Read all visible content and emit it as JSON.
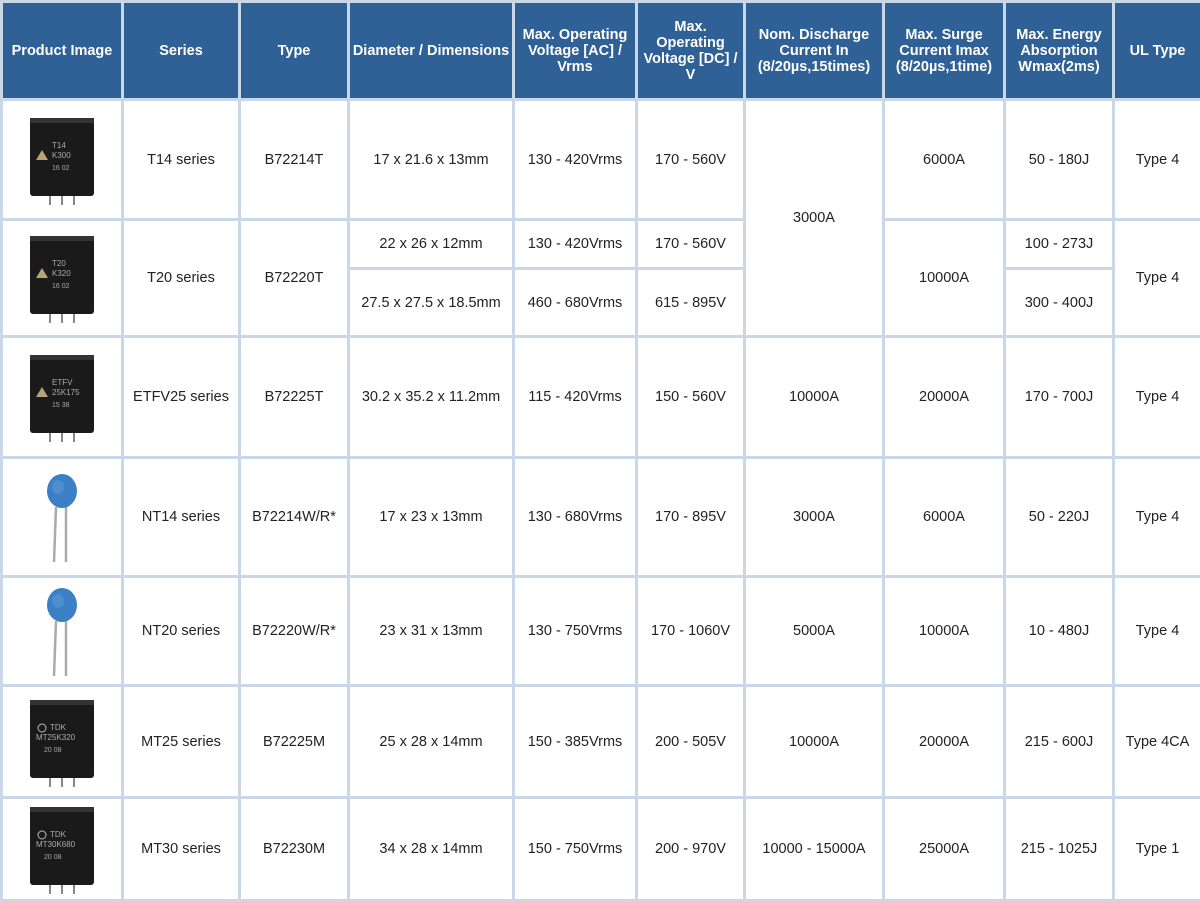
{
  "headers": [
    "Product Image",
    "Series",
    "Type",
    "Diameter / Dimensions",
    "Max. Operating Voltage [AC] / Vrms",
    "Max. Operating Voltage [DC] / V",
    "Nom. Discharge Current In (8/20µs,15times)",
    "Max. Surge Current Imax (8/20µs,1time)",
    "Max. Energy Absorption Wmax(2ms)",
    "UL Type"
  ],
  "rows": [
    {
      "image": {
        "kind": "black-block",
        "marking": [
          "T14",
          "K300",
          "16 02"
        ]
      },
      "series": "T14 series",
      "type": "B72214T",
      "dim": "17 x 21.6 x 13mm",
      "ac": "130 - 420Vrms",
      "dc": "170 - 560V",
      "nom": "3000A",
      "surge": "6000A",
      "energy": "50 - 180J",
      "ul": "Type 4"
    },
    {
      "image": {
        "kind": "black-block",
        "marking": [
          "T20",
          "K320",
          "16 02"
        ]
      },
      "series": "T20 series",
      "type": "B72220T",
      "variants": [
        {
          "dim": "22 x 26 x 12mm",
          "ac": "130 - 420Vrms",
          "dc": "170 - 560V",
          "energy": "100 - 273J"
        },
        {
          "dim": "27.5 x 27.5 x 18.5mm",
          "ac": "460 - 680Vrms",
          "dc": "615 - 895V",
          "energy": "300 - 400J"
        }
      ],
      "surge": "10000A",
      "ul": "Type 4"
    },
    {
      "image": {
        "kind": "black-block",
        "marking": [
          "ETFV",
          "25K175",
          "15 38"
        ]
      },
      "series": "ETFV25 series",
      "type": "B72225T",
      "dim": "30.2 x 35.2 x 11.2mm",
      "ac": "115 - 420Vrms",
      "dc": "150 - 560V",
      "nom": "10000A",
      "surge": "20000A",
      "energy": "170 - 700J",
      "ul": "Type 4"
    },
    {
      "image": {
        "kind": "blue-disc"
      },
      "series": "NT14 series",
      "type": "B72214W/R*",
      "dim": "17 x 23 x 13mm",
      "ac": "130 - 680Vrms",
      "dc": "170 - 895V",
      "nom": "3000A",
      "surge": "6000A",
      "energy": "50 - 220J",
      "ul": "Type 4"
    },
    {
      "image": {
        "kind": "blue-disc"
      },
      "series": "NT20 series",
      "type": "B72220W/R*",
      "dim": "23 x 31 x 13mm",
      "ac": "130 - 750Vrms",
      "dc": "170 - 1060V",
      "nom": "5000A",
      "surge": "10000A",
      "energy": "10 - 480J",
      "ul": "Type 4"
    },
    {
      "image": {
        "kind": "black-block",
        "marking": [
          "TDK",
          "MT25K320",
          "20 08"
        ]
      },
      "series": "MT25 series",
      "type": "B72225M",
      "dim": "25 x 28 x 14mm",
      "ac": "150 - 385Vrms",
      "dc": "200 - 505V",
      "nom": "10000A",
      "surge": "20000A",
      "energy": "215 - 600J",
      "ul": "Type 4CA"
    },
    {
      "image": {
        "kind": "black-block",
        "marking": [
          "TDK",
          "MT30K680",
          "20 08"
        ]
      },
      "series": "MT30 series",
      "type": "B72230M",
      "dim": "34 x 28 x 14mm",
      "ac": "150 - 750Vrms",
      "dc": "200 - 970V",
      "nom": "10000 - 15000A",
      "surge": "25000A",
      "energy": "215 - 1025J",
      "ul": "Type 1"
    }
  ],
  "colors": {
    "header_bg": "#2f6096",
    "grid": "#c9d7e6",
    "disc": "#3b7fc4"
  }
}
